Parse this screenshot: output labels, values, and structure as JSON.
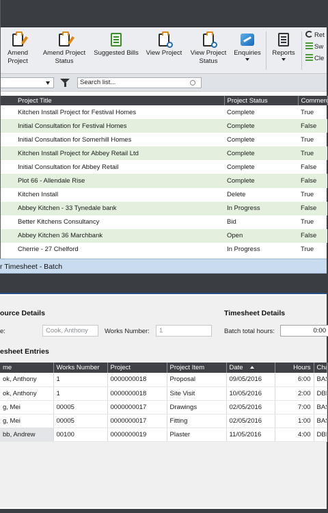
{
  "ribbon": {
    "buttons": [
      {
        "label": "Amend Project"
      },
      {
        "label": "Amend Project Status"
      },
      {
        "label": "Suggested Bills"
      },
      {
        "label": "View Project"
      },
      {
        "label": "View Project Status"
      },
      {
        "label": "Enquiries"
      },
      {
        "label": "Reports"
      }
    ],
    "small_buttons": [
      {
        "label": "Ret"
      },
      {
        "label": "Sw"
      },
      {
        "label": "Cle"
      }
    ]
  },
  "filter": {
    "search_placeholder": "Search list..."
  },
  "projects": {
    "columns": [
      "Project Title",
      "Project Status",
      "Commerc"
    ],
    "rows": [
      {
        "title": "Kitchen Install Project for Festival Homes",
        "status": "Complete",
        "commercial": "True"
      },
      {
        "title": "Initial Consultation for Festival Homes",
        "status": "Complete",
        "commercial": "False"
      },
      {
        "title": "Initial Consultation for Somerhill Homes",
        "status": "Complete",
        "commercial": "True"
      },
      {
        "title": "Kitchen Install Project for Abbey Retail Ltd",
        "status": "Complete",
        "commercial": "True"
      },
      {
        "title": "Initial Consultation for Abbey Retail",
        "status": "Complete",
        "commercial": "False"
      },
      {
        "title": "Plot 66 - Allendale Rise",
        "status": "Complete",
        "commercial": "False"
      },
      {
        "title": "Kitchen Install",
        "status": "Delete",
        "commercial": "True"
      },
      {
        "title": "Abbey Kitchen - 33 Tynedale bank",
        "status": "In Progress",
        "commercial": "False"
      },
      {
        "title": "Better Kitchens Consultancy",
        "status": "Bid",
        "commercial": "True"
      },
      {
        "title": "Abbey Kitchen 36 Marchbank",
        "status": "Open",
        "commercial": "False"
      },
      {
        "title": "Cherrie - 27 Chelford",
        "status": "In Progress",
        "commercial": "True"
      }
    ]
  },
  "timesheet": {
    "window_title": "r Timesheet - Batch",
    "resource_section": "ource Details",
    "resource_label": "e:",
    "resource_name": "Cook, Anthony",
    "works_number_label": "Works Number:",
    "works_number": "1",
    "details_section": "Timesheet Details",
    "batch_total_label": "Batch total hours:",
    "batch_total": "0:00",
    "entries_section": "esheet Entries",
    "columns": [
      "me",
      "Works Number",
      "Project",
      "Project Item",
      "Date",
      "Hours",
      "Cha"
    ],
    "rows": [
      {
        "name": "ok, Anthony",
        "works": "1",
        "project": "0000000018",
        "item": "Proposal",
        "date": "09/05/2016",
        "hours": "6:00",
        "charge": "BAS"
      },
      {
        "name": "ok, Anthony",
        "works": "1",
        "project": "0000000018",
        "item": "Site Visit",
        "date": "10/05/2016",
        "hours": "2:00",
        "charge": "DBL"
      },
      {
        "name": "g, Mei",
        "works": "00005",
        "project": "0000000017",
        "item": "Drawings",
        "date": "02/05/2016",
        "hours": "7:00",
        "charge": "BAS"
      },
      {
        "name": "g, Mei",
        "works": "00005",
        "project": "0000000017",
        "item": "Fitting",
        "date": "02/05/2016",
        "hours": "1:00",
        "charge": "BAS"
      },
      {
        "name": "bb, Andrew",
        "works": "00100",
        "project": "0000000019",
        "item": "Plaster",
        "date": "11/05/2016",
        "hours": "4:00",
        "charge": "DBL"
      }
    ]
  }
}
